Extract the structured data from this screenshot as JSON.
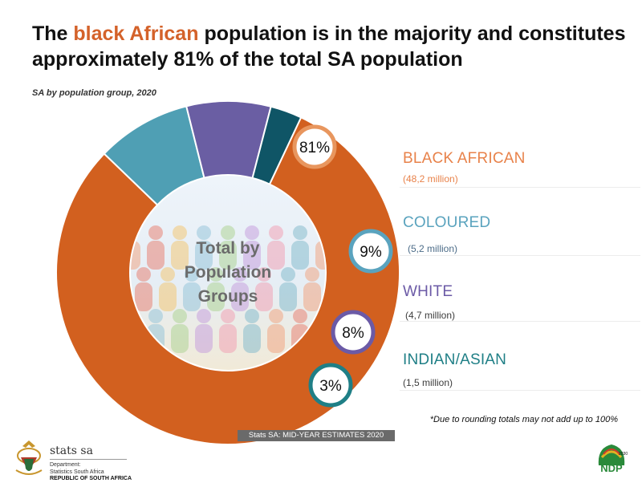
{
  "header": {
    "title_prefix": "The ",
    "title_highlight": "black African",
    "title_suffix": " population is in the majority and constitutes approximately 81% of the total SA population",
    "subtitle": "SA by population group, 2020"
  },
  "chart_data": {
    "type": "pie",
    "variant": "donut",
    "title": "SA by population group, 2020",
    "center_label": "Total by Population Groups",
    "slices": [
      {
        "name": "BLACK AFRICAN",
        "percent": 81,
        "label": "81%",
        "value_label": "(48,2 million)",
        "value_millions": 48.2,
        "color": "#d2601f",
        "legend_color": "#e8824a",
        "badge_color": "#e8965e"
      },
      {
        "name": "COLOURED",
        "percent": 9,
        "label": "9%",
        "value_label": "(5,2 million)",
        "value_millions": 5.2,
        "color": "#4f9fb4",
        "legend_color": "#5aa3be",
        "badge_color": "#5aa3be"
      },
      {
        "name": "WHITE",
        "percent": 8,
        "label": "8%",
        "value_label": "(4,7 million)",
        "value_millions": 4.7,
        "color": "#6a5ea3",
        "legend_color": "#6b5aa6",
        "badge_color": "#6b5aa6"
      },
      {
        "name": "INDIAN/ASIAN",
        "percent": 3,
        "label": "3%",
        "value_label": "(1,5 million)",
        "value_millions": 1.5,
        "color": "#0f5566",
        "legend_color": "#1f7f86",
        "badge_color": "#1f7f86"
      }
    ]
  },
  "footer": {
    "footnote": "*Due to rounding totals may not add up to 100%",
    "source": "Stats SA: MID-YEAR ESTIMATES 2020",
    "org_name": "stats sa",
    "org_line1": "Department:",
    "org_line2": "Statistics South Africa",
    "org_line3": "REPUBLIC OF SOUTH AFRICA",
    "ndp_label": "NDP",
    "ndp_year": "2030"
  }
}
